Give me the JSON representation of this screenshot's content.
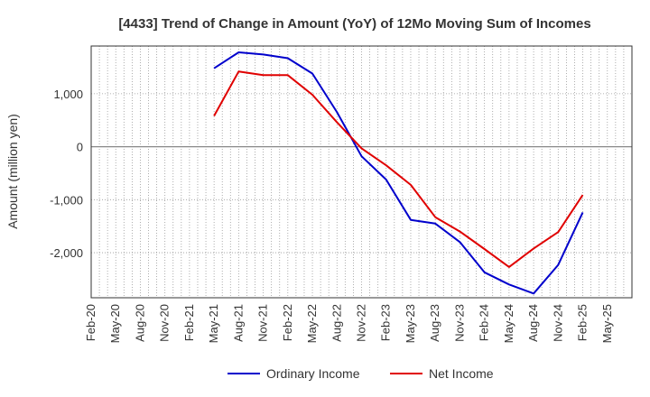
{
  "chart_data": {
    "type": "line",
    "title": "[4433]  Trend of Change in Amount (YoY) of 12Mo Moving Sum of Incomes",
    "xlabel": "",
    "ylabel": "Amount (million yen)",
    "categories": [
      "Feb-20",
      "May-20",
      "Aug-20",
      "Nov-20",
      "Feb-21",
      "May-21",
      "Aug-21",
      "Nov-21",
      "Feb-22",
      "May-22",
      "Aug-22",
      "Nov-22",
      "Feb-23",
      "May-23",
      "Aug-23",
      "Nov-23",
      "Feb-24",
      "May-24",
      "Aug-24",
      "Nov-24",
      "Feb-25",
      "May-25"
    ],
    "ylim": [
      -2850,
      1900
    ],
    "yticks": [
      1000,
      0,
      -1000,
      -2000
    ],
    "ytick_labels": [
      "1,000",
      "0",
      "-1,000",
      "-2,000"
    ],
    "grid": true,
    "legend_position": "bottom",
    "series": [
      {
        "name": "Ordinary Income",
        "color": "#0000cc",
        "values": [
          null,
          null,
          null,
          null,
          null,
          1480,
          1780,
          1740,
          1670,
          1380,
          650,
          -180,
          -620,
          -1380,
          -1450,
          -1800,
          -2370,
          -2600,
          -2770,
          -2230,
          -1240,
          null
        ]
      },
      {
        "name": "Net Income",
        "color": "#e00000",
        "values": [
          null,
          null,
          null,
          null,
          null,
          580,
          1420,
          1350,
          1350,
          980,
          460,
          -30,
          -350,
          -720,
          -1330,
          -1600,
          -1930,
          -2270,
          -1920,
          -1610,
          -910,
          null
        ]
      }
    ]
  }
}
